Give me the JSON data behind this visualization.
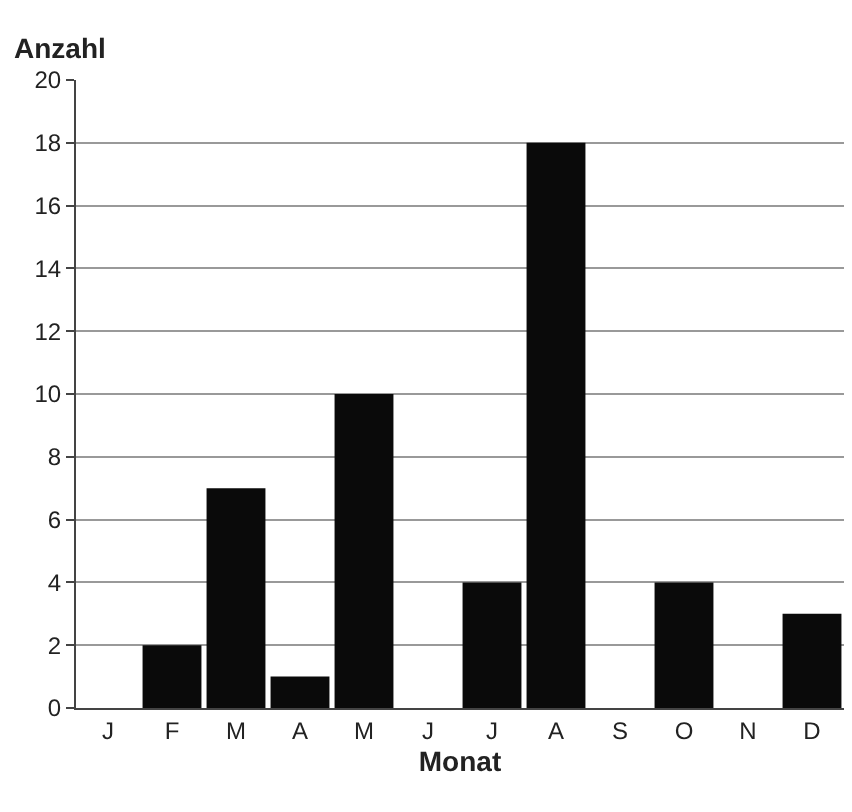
{
  "chart_data": {
    "type": "bar",
    "ylabel": "Anzahl",
    "xlabel": "Monat",
    "categories": [
      "J",
      "F",
      "M",
      "A",
      "M",
      "J",
      "J",
      "A",
      "S",
      "O",
      "N",
      "D"
    ],
    "values": [
      0,
      2,
      7,
      1,
      10,
      0,
      4,
      18,
      0,
      4,
      0,
      3
    ],
    "color": "#0a0a0a",
    "ylim": [
      0,
      20
    ],
    "yticks": [
      0,
      2,
      4,
      6,
      8,
      10,
      12,
      14,
      16,
      18,
      20
    ],
    "grid": "y"
  }
}
